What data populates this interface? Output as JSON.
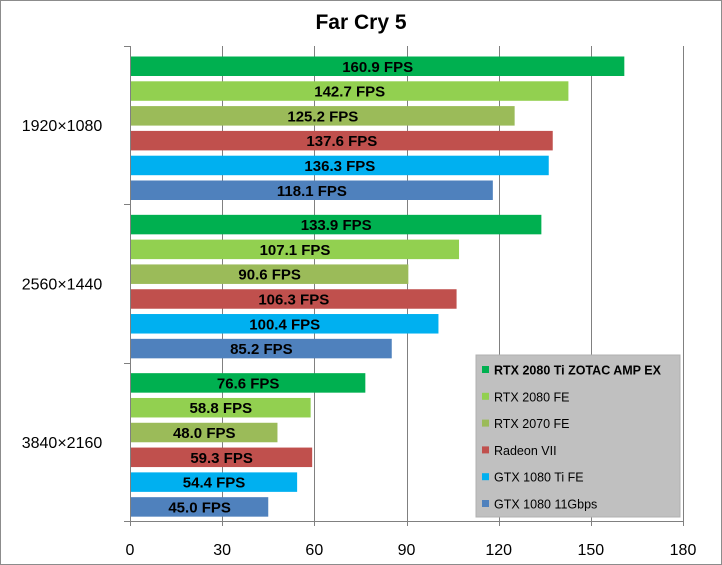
{
  "chart_data": {
    "type": "bar",
    "orientation": "horizontal",
    "title": "Far Cry 5",
    "categories": [
      "1920×1080",
      "2560×1440",
      "3840×2160"
    ],
    "xlim": [
      0,
      180
    ],
    "xticks": [
      0,
      30,
      60,
      90,
      120,
      150,
      180
    ],
    "grid": true,
    "legend_position": "bottom-right",
    "value_suffix": " FPS",
    "series": [
      {
        "name": "RTX 2080 Ti ZOTAC AMP EX",
        "color": "#00b050",
        "bold": true,
        "values": [
          160.9,
          133.9,
          76.6
        ]
      },
      {
        "name": "RTX 2080 FE",
        "color": "#92d050",
        "bold": false,
        "values": [
          142.7,
          107.1,
          58.8
        ]
      },
      {
        "name": "RTX 2070 FE",
        "color": "#9bbb59",
        "bold": false,
        "values": [
          125.2,
          90.6,
          48.0
        ]
      },
      {
        "name": "Radeon VII",
        "color": "#c0504d",
        "bold": false,
        "values": [
          137.6,
          106.3,
          59.3
        ]
      },
      {
        "name": "GTX 1080 Ti FE",
        "color": "#00b0f0",
        "bold": false,
        "values": [
          136.3,
          100.4,
          54.4
        ]
      },
      {
        "name": "GTX 1080 11Gbps",
        "color": "#4f81bd",
        "bold": false,
        "values": [
          118.1,
          85.2,
          45.0
        ]
      }
    ]
  }
}
